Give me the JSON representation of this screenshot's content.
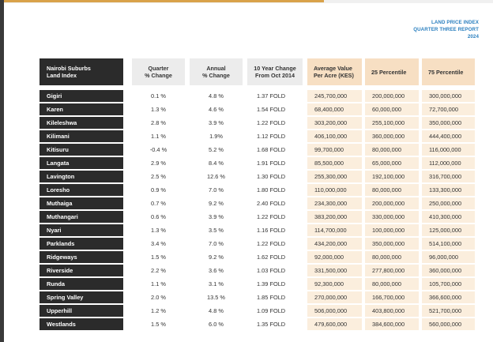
{
  "report": {
    "line1": "LAND PRICE INDEX",
    "line2": "QUARTER THREE REPORT",
    "line3": "2024"
  },
  "table": {
    "headers": {
      "name_1": "Nairobi Suburbs",
      "name_2": "Land Index",
      "quarter_1": "Quarter",
      "quarter_2": "% Change",
      "annual_1": "Annual",
      "annual_2": "% Change",
      "tenyear_1": "10 Year Change",
      "tenyear_2": "From Oct 2014",
      "avg_1": "Average Value",
      "avg_2": "Per Acre (KES)",
      "p25": "25 Percentile",
      "p75": "75 Percentile"
    },
    "rows": [
      {
        "name": "Gigiri",
        "quarter": "0.1 %",
        "annual": "4.8 %",
        "tenyear": "1.37 FOLD",
        "avg": "245,700,000",
        "p25": "200,000,000",
        "p75": "300,000,000"
      },
      {
        "name": "Karen",
        "quarter": "1.3 %",
        "annual": "4.6 %",
        "tenyear": "1.54 FOLD",
        "avg": "68,400,000",
        "p25": "60,000,000",
        "p75": "72,700,000"
      },
      {
        "name": "Kileleshwa",
        "quarter": "2.8 %",
        "annual": "3.9 %",
        "tenyear": "1.22 FOLD",
        "avg": "303,200,000",
        "p25": "255,100,000",
        "p75": "350,000,000"
      },
      {
        "name": "Kilimani",
        "quarter": "1.1 %",
        "annual": "1.9%",
        "tenyear": "1.12 FOLD",
        "avg": "406,100,000",
        "p25": "360,000,000",
        "p75": "444,400,000"
      },
      {
        "name": "Kitisuru",
        "quarter": "-0.4 %",
        "annual": "5.2 %",
        "tenyear": "1.68 FOLD",
        "avg": "99,700,000",
        "p25": "80,000,000",
        "p75": "116,000,000"
      },
      {
        "name": "Langata",
        "quarter": "2.9 %",
        "annual": "8.4 %",
        "tenyear": "1.91 FOLD",
        "avg": "85,500,000",
        "p25": "65,000,000",
        "p75": "112,000,000"
      },
      {
        "name": "Lavington",
        "quarter": "2.5 %",
        "annual": "12.6 %",
        "tenyear": "1.30 FOLD",
        "avg": "255,300,000",
        "p25": "192,100,000",
        "p75": "316,700,000"
      },
      {
        "name": "Loresho",
        "quarter": "0.9 %",
        "annual": "7.0 %",
        "tenyear": "1.80 FOLD",
        "avg": "110,000,000",
        "p25": "80,000,000",
        "p75": "133,300,000"
      },
      {
        "name": "Muthaiga",
        "quarter": "0.7 %",
        "annual": "9.2 %",
        "tenyear": "2.40 FOLD",
        "avg": "234,300,000",
        "p25": "200,000,000",
        "p75": "250,000,000"
      },
      {
        "name": "Muthangari",
        "quarter": "0.6 %",
        "annual": "3.9 %",
        "tenyear": "1.22 FOLD",
        "avg": "383,200,000",
        "p25": "330,000,000",
        "p75": "410,300,000"
      },
      {
        "name": "Nyari",
        "quarter": "1.3 %",
        "annual": "3.5 %",
        "tenyear": "1.16 FOLD",
        "avg": "114,700,000",
        "p25": "100,000,000",
        "p75": "125,000,000"
      },
      {
        "name": "Parklands",
        "quarter": "3.4 %",
        "annual": "7.0 %",
        "tenyear": "1.22 FOLD",
        "avg": "434,200,000",
        "p25": "350,000,000",
        "p75": "514,100,000"
      },
      {
        "name": "Ridgeways",
        "quarter": "1.5 %",
        "annual": "9.2 %",
        "tenyear": "1.62 FOLD",
        "avg": "92,000,000",
        "p25": "80,000,000",
        "p75": "96,000,000"
      },
      {
        "name": "Riverside",
        "quarter": "2.2 %",
        "annual": "3.6 %",
        "tenyear": "1.03 FOLD",
        "avg": "331,500,000",
        "p25": "277,800,000",
        "p75": "360,000,000"
      },
      {
        "name": "Runda",
        "quarter": "1.1 %",
        "annual": "3.1 %",
        "tenyear": "1.39 FOLD",
        "avg": "92,300,000",
        "p25": "80,000,000",
        "p75": "105,700,000"
      },
      {
        "name": "Spring Valley",
        "quarter": "2.0 %",
        "annual": "13.5 %",
        "tenyear": "1.85 FOLD",
        "avg": "270,000,000",
        "p25": "166,700,000",
        "p75": "366,600,000"
      },
      {
        "name": "Upperhill",
        "quarter": "1.2 %",
        "annual": "4.8 %",
        "tenyear": "1.09 FOLD",
        "avg": "506,000,000",
        "p25": "403,800,000",
        "p75": "521,700,000"
      },
      {
        "name": "Westlands",
        "quarter": "1.5 %",
        "annual": "6.0 %",
        "tenyear": "1.35 FOLD",
        "avg": "479,600,000",
        "p25": "384,600,000",
        "p75": "560,000,000"
      }
    ]
  },
  "colors": {
    "accent_blue": "#2a7fbf",
    "name_col_bg": "#2b2b2b",
    "value_col_bg": "#fbeedd",
    "value_header_bg": "#f7dfc3",
    "gold_rule": "#d9a24a"
  }
}
